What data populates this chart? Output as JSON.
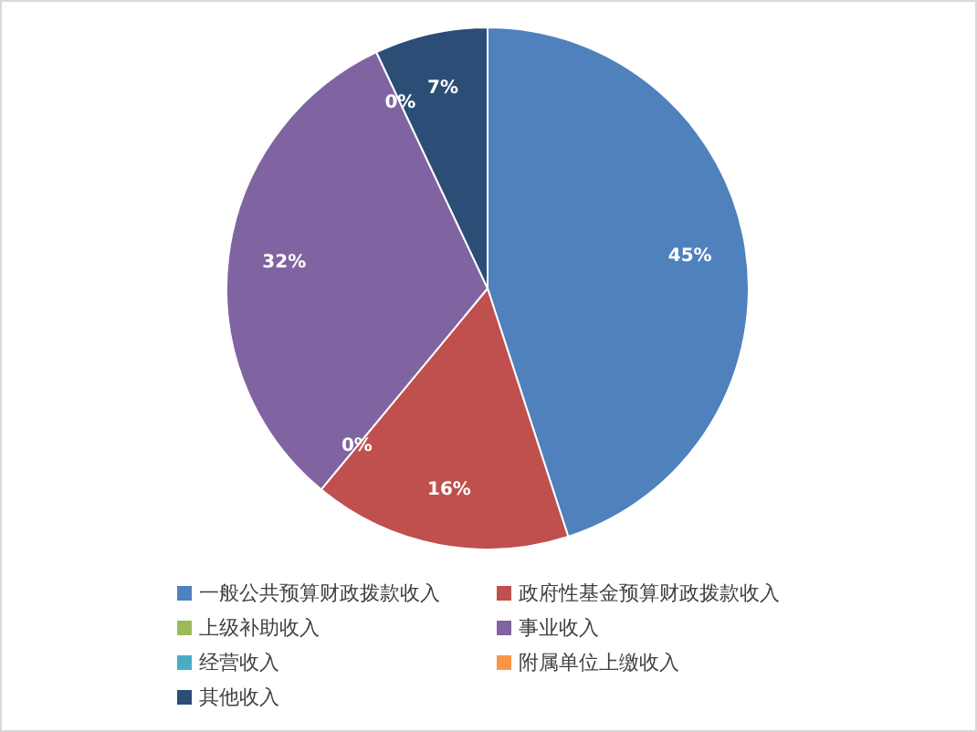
{
  "chart_data": {
    "type": "pie",
    "categories": [
      "一般公共预算财政拨款收入",
      "政府性基金预算财政拨款收入",
      "上级补助收入",
      "事业收入",
      "经营收入",
      "附属单位上缴收入",
      "其他收入"
    ],
    "values": [
      45,
      16,
      0,
      32,
      0,
      0,
      7
    ],
    "colors": [
      "#4f81bd",
      "#c0504d",
      "#9bbb59",
      "#8064a2",
      "#4bacc6",
      "#f79646",
      "#2c4d75"
    ],
    "value_labels": [
      "45%",
      "16%",
      "0%",
      "32%",
      "0%",
      null,
      "7%"
    ],
    "legend": "bottom"
  }
}
